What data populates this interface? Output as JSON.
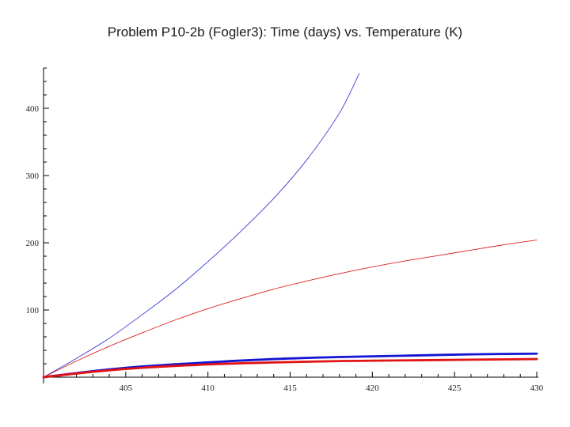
{
  "slide": {
    "title": "Problem P10-2b (Fogler3): Time (days) vs. Temperature (K)"
  },
  "chart_data": {
    "type": "line",
    "title": "Problem P10-2b (Fogler3): Time (days) vs. Temperature (K)",
    "xlabel": "",
    "ylabel": "",
    "xlim": [
      400,
      430
    ],
    "ylim": [
      0,
      460
    ],
    "x_ticks": [
      405,
      410,
      415,
      420,
      425,
      430
    ],
    "y_ticks": [
      100,
      200,
      300,
      400
    ],
    "grid": false,
    "legend": "none",
    "series": [
      {
        "color": "#3a3ad8",
        "stroke": "thin",
        "x": [
          400,
          402,
          404,
          406,
          408,
          410,
          412,
          414,
          416,
          418,
          419.2
        ],
        "y": [
          0,
          28,
          58,
          93,
          130,
          172,
          217,
          266,
          323,
          393,
          452
        ]
      },
      {
        "color": "#e02020",
        "stroke": "thin",
        "x": [
          400,
          402,
          404,
          406,
          408,
          410,
          412,
          414,
          416,
          418,
          420,
          422,
          424,
          426,
          428,
          430
        ],
        "y": [
          0,
          24,
          46,
          66,
          85,
          102,
          117,
          131,
          143,
          154,
          164,
          173,
          181,
          189,
          197,
          204
        ]
      },
      {
        "color": "#1414d2",
        "stroke": "thick",
        "x": [
          400,
          403,
          406,
          410,
          414,
          418,
          422,
          426,
          430
        ],
        "y": [
          0,
          9,
          16,
          22,
          27,
          30,
          32,
          34,
          35
        ]
      },
      {
        "color": "#e01414",
        "stroke": "thick",
        "x": [
          400,
          403,
          406,
          410,
          414,
          418,
          422,
          426,
          430
        ],
        "y": [
          0,
          8,
          14,
          19,
          22,
          24,
          25,
          26,
          27
        ]
      }
    ]
  }
}
